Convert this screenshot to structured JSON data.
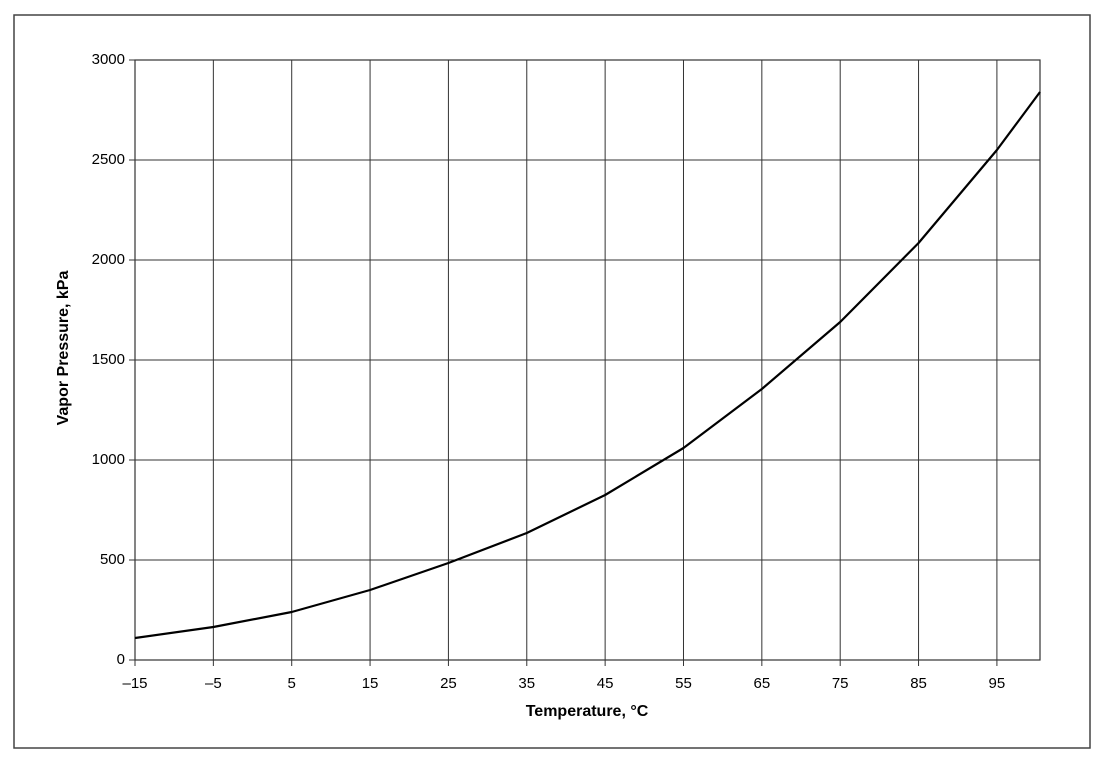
{
  "chart_data": {
    "type": "line",
    "x_label": "Temperature, °C",
    "y_label": "Vapor Pressure, kPa",
    "x": [
      -15,
      -5,
      5,
      15,
      25,
      35,
      45,
      55,
      65,
      75,
      85,
      95,
      100.5
    ],
    "series": [
      {
        "name": "Vapor pressure",
        "color": "#000000",
        "values": [
          110,
          165,
          240,
          350,
          485,
          635,
          825,
          1060,
          1355,
          1690,
          2085,
          2550,
          2840
        ]
      }
    ],
    "xlim": [
      -15,
      100.5
    ],
    "xticks": [
      {
        "value": -15,
        "label": "–15"
      },
      {
        "value": -5,
        "label": "–5"
      },
      5,
      15,
      25,
      35,
      45,
      55,
      65,
      75,
      85,
      95
    ],
    "ylim": [
      0,
      3000
    ],
    "yticks": [
      0,
      500,
      1000,
      1500,
      2000,
      2500,
      3000
    ],
    "grid": true
  }
}
